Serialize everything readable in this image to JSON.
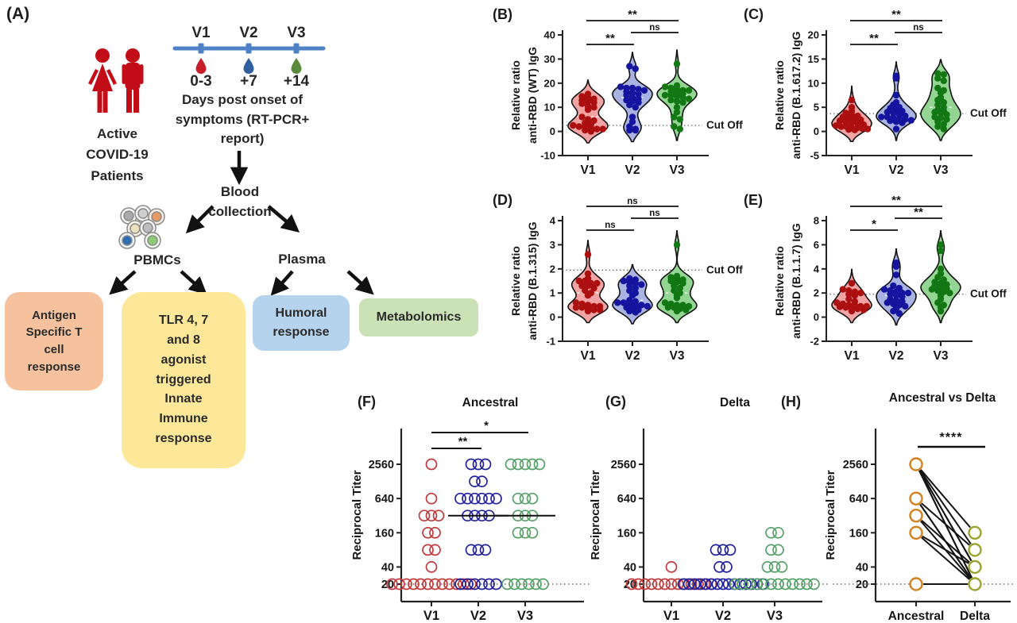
{
  "panelA": {
    "label": "(A)",
    "patients_icon_color": "#c20d19",
    "patients_caption": "Active\nCOVID-19\nPatients",
    "timeline": {
      "visits": [
        "V1",
        "V2",
        "V3"
      ],
      "days": [
        "0-3",
        "+7",
        "+14"
      ],
      "drop_colors": [
        "#c51e2a",
        "#2f5f9e",
        "#5a8a3c"
      ],
      "line_color": "#4f81c7",
      "caption": "Days post onset of\nsymptoms (RT-PCR+\nreport)"
    },
    "blood_collection_label": "Blood\ncollection",
    "pbmcs_label": "PBMCs",
    "plasma_label": "Plasma",
    "boxes": [
      {
        "id": "antigen-t-cell",
        "text": "Antigen\nSpecific T\ncell\nresponse",
        "color": "#f6c29e"
      },
      {
        "id": "tlr-innate",
        "text": "TLR 4, 7\nand 8\nagonist\ntriggered\nInnate\nImmune\nresponse",
        "color": "#fde89a"
      },
      {
        "id": "humoral",
        "text": "Humoral\nresponse",
        "color": "#b5d3ec"
      },
      {
        "id": "metabolomics",
        "text": "Metabolomics",
        "color": "#cbe2b6"
      }
    ]
  },
  "chart_data": [
    {
      "id": "B",
      "panel_label": "(B)",
      "type": "violin",
      "ylabel_line1": "Relative ratio",
      "ylabel_line2": "anti-RBD (WT) IgG",
      "ylim": [
        -10,
        40
      ],
      "yticks": [
        -10,
        0,
        10,
        20,
        30,
        40
      ],
      "categories": [
        "V1",
        "V2",
        "V3"
      ],
      "cutoff": 2.5,
      "cutoff_label": "Cut Off",
      "series": [
        {
          "name": "V1",
          "fill": "#f2a3a3",
          "dot": "#ab0f0f",
          "values": [
            15.5,
            14.5,
            14,
            13.5,
            13,
            12.5,
            12,
            11.5,
            10.5,
            10,
            9,
            6,
            5,
            4.5,
            3.5,
            3,
            2.5,
            2,
            2,
            1.5,
            1,
            1,
            0.5,
            0
          ]
        },
        {
          "name": "V2",
          "fill": "#a9b3e3",
          "dot": "#14149e",
          "values": [
            27,
            26,
            18.5,
            18,
            18,
            17.5,
            17,
            16.5,
            16,
            15.5,
            15,
            14,
            13.5,
            13,
            12.5,
            12,
            11,
            10,
            6,
            4,
            2,
            1,
            0.5,
            0.5
          ]
        },
        {
          "name": "V3",
          "fill": "#93d693",
          "dot": "#137713",
          "values": [
            28,
            19,
            18.5,
            18,
            17.5,
            17,
            17,
            16.5,
            16,
            15.5,
            15,
            15,
            14.5,
            14,
            13.5,
            13,
            12.5,
            12,
            10,
            8,
            6,
            5,
            2,
            1
          ]
        }
      ],
      "significance": [
        {
          "a": 0,
          "b": 2,
          "label": "**"
        },
        {
          "a": 1,
          "b": 2,
          "label": "ns"
        },
        {
          "a": 0,
          "b": 1,
          "label": "**"
        }
      ]
    },
    {
      "id": "C",
      "panel_label": "(C)",
      "type": "violin",
      "ylabel_line1": "Relative ratio",
      "ylabel_line2": "anti-RBD (B.1.617.2) IgG",
      "ylim": [
        -5,
        20
      ],
      "yticks": [
        -5,
        0,
        5,
        10,
        15,
        20
      ],
      "categories": [
        "V1",
        "V2",
        "V3"
      ],
      "cutoff": 3.7,
      "cutoff_label": "Cut Off",
      "series": [
        {
          "name": "V1",
          "fill": "#f2a3a3",
          "dot": "#ab0f0f",
          "values": [
            6.5,
            5,
            4.2,
            3.8,
            3.5,
            3.2,
            3,
            2.8,
            2.6,
            2.4,
            2.2,
            2,
            1.8,
            1.6,
            1.4,
            1.2,
            1,
            1,
            0.8,
            0.7,
            0.6,
            0.5,
            0.4,
            0.3
          ]
        },
        {
          "name": "V2",
          "fill": "#a9b3e3",
          "dot": "#14149e",
          "values": [
            11.5,
            11,
            7.5,
            6,
            5.5,
            5,
            4.8,
            4.5,
            4.2,
            4,
            3.8,
            3.5,
            3.2,
            3,
            3,
            2.8,
            2.6,
            2.5,
            2.3,
            2.2,
            2,
            1.8,
            0.5
          ]
        },
        {
          "name": "V3",
          "fill": "#93d693",
          "dot": "#137713",
          "values": [
            12,
            11.8,
            11,
            10.5,
            9,
            8.5,
            8,
            7,
            6.5,
            6,
            5.5,
            5,
            4.5,
            4.2,
            4,
            3.8,
            3.5,
            3,
            2.8,
            2.5,
            2,
            1.5,
            1,
            0.5
          ]
        }
      ],
      "significance": [
        {
          "a": 0,
          "b": 2,
          "label": "**"
        },
        {
          "a": 1,
          "b": 2,
          "label": "ns"
        },
        {
          "a": 0,
          "b": 1,
          "label": "**"
        }
      ]
    },
    {
      "id": "D",
      "panel_label": "(D)",
      "type": "violin",
      "ylabel_line1": "Relative ratio",
      "ylabel_line2": "anti-RBD (B.1.315) IgG",
      "ylim": [
        -1,
        4
      ],
      "yticks": [
        -1,
        0,
        1,
        2,
        3,
        4
      ],
      "categories": [
        "V1",
        "V2",
        "V3"
      ],
      "cutoff": 1.95,
      "cutoff_label": "Cut Off",
      "series": [
        {
          "name": "V1",
          "fill": "#f2a3a3",
          "dot": "#ab0f0f",
          "values": [
            2.6,
            1.8,
            1.6,
            1.5,
            1.5,
            1.4,
            1.4,
            1.3,
            1.3,
            1.2,
            1.1,
            1,
            0.9,
            0.6,
            0.55,
            0.5,
            0.45,
            0.45,
            0.4,
            0.4,
            0.35,
            0.3,
            0.3,
            0.25
          ]
        },
        {
          "name": "V2",
          "fill": "#a9b3e3",
          "dot": "#14149e",
          "values": [
            1.6,
            1.55,
            1.5,
            1.45,
            1.4,
            1.35,
            1.3,
            1.2,
            1.1,
            1,
            0.9,
            0.7,
            0.65,
            0.6,
            0.6,
            0.55,
            0.5,
            0.5,
            0.45,
            0.4,
            0.35,
            0.3,
            0.25,
            0.2
          ]
        },
        {
          "name": "V3",
          "fill": "#93d693",
          "dot": "#137713",
          "values": [
            3,
            1.7,
            1.65,
            1.6,
            1.55,
            1.5,
            1.45,
            1.4,
            1.3,
            1.2,
            1.1,
            1,
            0.9,
            0.8,
            0.6,
            0.55,
            0.5,
            0.5,
            0.45,
            0.4,
            0.4,
            0.35,
            0.3,
            0.25
          ]
        }
      ],
      "significance": [
        {
          "a": 0,
          "b": 2,
          "label": "ns"
        },
        {
          "a": 1,
          "b": 2,
          "label": "ns"
        },
        {
          "a": 0,
          "b": 1,
          "label": "ns"
        }
      ]
    },
    {
      "id": "E",
      "panel_label": "(E)",
      "type": "violin",
      "ylabel_line1": "Relative ratio",
      "ylabel_line2": "anti-RBD (B.1.1.7) IgG",
      "ylim": [
        -2,
        8
      ],
      "yticks": [
        -2,
        0,
        2,
        4,
        6,
        8
      ],
      "categories": [
        "V1",
        "V2",
        "V3"
      ],
      "cutoff": 1.9,
      "cutoff_label": "Cut Off",
      "series": [
        {
          "name": "V1",
          "fill": "#f2a3a3",
          "dot": "#ab0f0f",
          "values": [
            2.8,
            2.3,
            2.2,
            2.1,
            2,
            1.9,
            1.8,
            1.5,
            1.3,
            1.2,
            1.1,
            1,
            1,
            0.9,
            0.9,
            0.85,
            0.8,
            0.75,
            0.7,
            0.6,
            0.5
          ]
        },
        {
          "name": "V2",
          "fill": "#a9b3e3",
          "dot": "#14149e",
          "values": [
            4.5,
            4.2,
            3.5,
            2.6,
            2.4,
            2.3,
            2.2,
            2.1,
            2,
            2,
            1.9,
            1.8,
            1.7,
            1.5,
            1.4,
            1.3,
            1.2,
            1.1,
            1,
            0.9,
            0.7,
            0.5,
            0.3
          ]
        },
        {
          "name": "V3",
          "fill": "#93d693",
          "dot": "#137713",
          "values": [
            6,
            5.5,
            4,
            3.6,
            3.3,
            3.1,
            2.9,
            2.8,
            2.7,
            2.6,
            2.5,
            2.4,
            2.3,
            2.2,
            2.1,
            2,
            1.8,
            1.5,
            1.2,
            1,
            0.8,
            0.5
          ]
        }
      ],
      "significance": [
        {
          "a": 0,
          "b": 2,
          "label": "**"
        },
        {
          "a": 1,
          "b": 2,
          "label": "**"
        },
        {
          "a": 0,
          "b": 1,
          "label": "*"
        }
      ]
    },
    {
      "id": "F",
      "panel_label": "(F)",
      "type": "titer",
      "title": "Ancestral",
      "ylabel": "Reciprocal Titer",
      "yticks": [
        20,
        40,
        160,
        640,
        2560
      ],
      "baseline": 20,
      "categories": [
        "V1",
        "V2",
        "V3"
      ],
      "series": [
        {
          "name": "V1",
          "color": "#c0393b",
          "points": [
            [
              2560,
              1
            ],
            [
              640,
              1
            ],
            [
              320,
              3
            ],
            [
              160,
              2
            ],
            [
              80,
              2
            ],
            [
              40,
              1
            ],
            [
              20,
              12
            ]
          ]
        },
        {
          "name": "V2",
          "color": "#22229b",
          "points": [
            [
              2560,
              3
            ],
            [
              1280,
              2
            ],
            [
              640,
              6
            ],
            [
              320,
              4
            ],
            [
              80,
              3
            ],
            [
              20,
              6
            ]
          ]
        },
        {
          "name": "V3",
          "color": "#58a06a",
          "points": [
            [
              2560,
              5
            ],
            [
              640,
              3
            ],
            [
              320,
              3
            ],
            [
              160,
              3
            ],
            [
              20,
              6
            ]
          ]
        }
      ],
      "medians": [
        null,
        320,
        320
      ],
      "significance": [
        {
          "a": 0,
          "b": 2,
          "label": "*"
        },
        {
          "a": 0,
          "b": 1,
          "label": "**"
        }
      ]
    },
    {
      "id": "G",
      "panel_label": "(G)",
      "type": "titer",
      "title": "Delta",
      "ylabel": "Reciprocal Titer",
      "yticks": [
        20,
        40,
        160,
        640,
        2560
      ],
      "baseline": 20,
      "categories": [
        "V1",
        "V2",
        "V3"
      ],
      "series": [
        {
          "name": "V1",
          "color": "#c0393b",
          "points": [
            [
              40,
              1
            ],
            [
              20,
              13
            ]
          ]
        },
        {
          "name": "V2",
          "color": "#22229b",
          "points": [
            [
              80,
              3
            ],
            [
              40,
              2
            ],
            [
              20,
              15
            ]
          ]
        },
        {
          "name": "V3",
          "color": "#58a06a",
          "points": [
            [
              160,
              2
            ],
            [
              80,
              2
            ],
            [
              40,
              3
            ],
            [
              20,
              12
            ]
          ]
        }
      ],
      "medians": [
        null,
        null,
        null
      ],
      "significance": []
    },
    {
      "id": "H",
      "panel_label": "(H)",
      "type": "paired",
      "title": "Ancestral vs Delta",
      "ylabel": "Reciprocal Titer",
      "yticks": [
        20,
        40,
        160,
        640,
        2560
      ],
      "baseline": 20,
      "categories": [
        "Ancestral",
        "Delta"
      ],
      "left_color": "#d2811f",
      "right_color": "#9aa32b",
      "pairs": [
        [
          2560,
          160
        ],
        [
          2560,
          80
        ],
        [
          2560,
          40
        ],
        [
          2560,
          40
        ],
        [
          2560,
          20
        ],
        [
          2560,
          20
        ],
        [
          640,
          80
        ],
        [
          640,
          20
        ],
        [
          640,
          20
        ],
        [
          320,
          40
        ],
        [
          320,
          20
        ],
        [
          160,
          40
        ],
        [
          160,
          20
        ],
        [
          20,
          20
        ]
      ],
      "significance_label": "****"
    }
  ]
}
